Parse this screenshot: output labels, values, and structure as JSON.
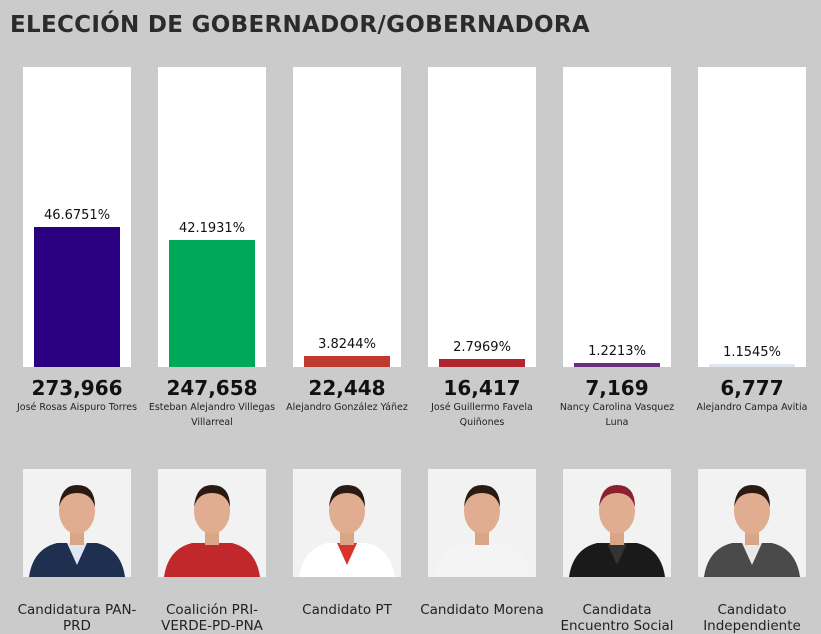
{
  "title": "ELECCIÓN DE GOBERNADOR/GOBERNADORA",
  "candidates": [
    {
      "percent": 46.6751,
      "percent_label": "46.6751%",
      "votes": "273,966",
      "name": "José Rosas Aispuro Torres",
      "party": "Candidatura PAN-PRD",
      "color": "#2a0080",
      "suit": "#1f2f4f",
      "shirt": "#dde6f2"
    },
    {
      "percent": 42.1931,
      "percent_label": "42.1931%",
      "votes": "247,658",
      "name": "Esteban Alejandro Villegas Villarreal",
      "party": "Coalición PRI-VERDE-PD-PNA",
      "color": "#00a859",
      "suit": "#c0282c",
      "shirt": "#c0282c"
    },
    {
      "percent": 3.8244,
      "percent_label": "3.8244%",
      "votes": "22,448",
      "name": "Alejandro González Yáñez",
      "party": "Candidato PT",
      "color": "#c0392f",
      "suit": "#ffffff",
      "shirt": "#d8342c"
    },
    {
      "percent": 2.7969,
      "percent_label": "2.7969%",
      "votes": "16,417",
      "name": "José Guillermo Favela Quiñones",
      "party": "Candidato Morena",
      "color": "#b0252f",
      "suit": "#f4f4f4",
      "shirt": "#f4f4f4"
    },
    {
      "percent": 1.2213,
      "percent_label": "1.2213%",
      "votes": "7,169",
      "name": "Nancy Carolina Vasquez Luna",
      "party": "Candidata Encuentro Social",
      "color": "#6a2e7e",
      "suit": "#1a1a1a",
      "shirt": "#333"
    },
    {
      "percent": 1.1545,
      "percent_label": "1.1545%",
      "votes": "6,777",
      "name": "Alejandro Campa Avitia",
      "party": "Candidato Independiente",
      "color": "#dfe6ef",
      "suit": "#4a4a4a",
      "shirt": "#e8e8e8"
    }
  ]
}
